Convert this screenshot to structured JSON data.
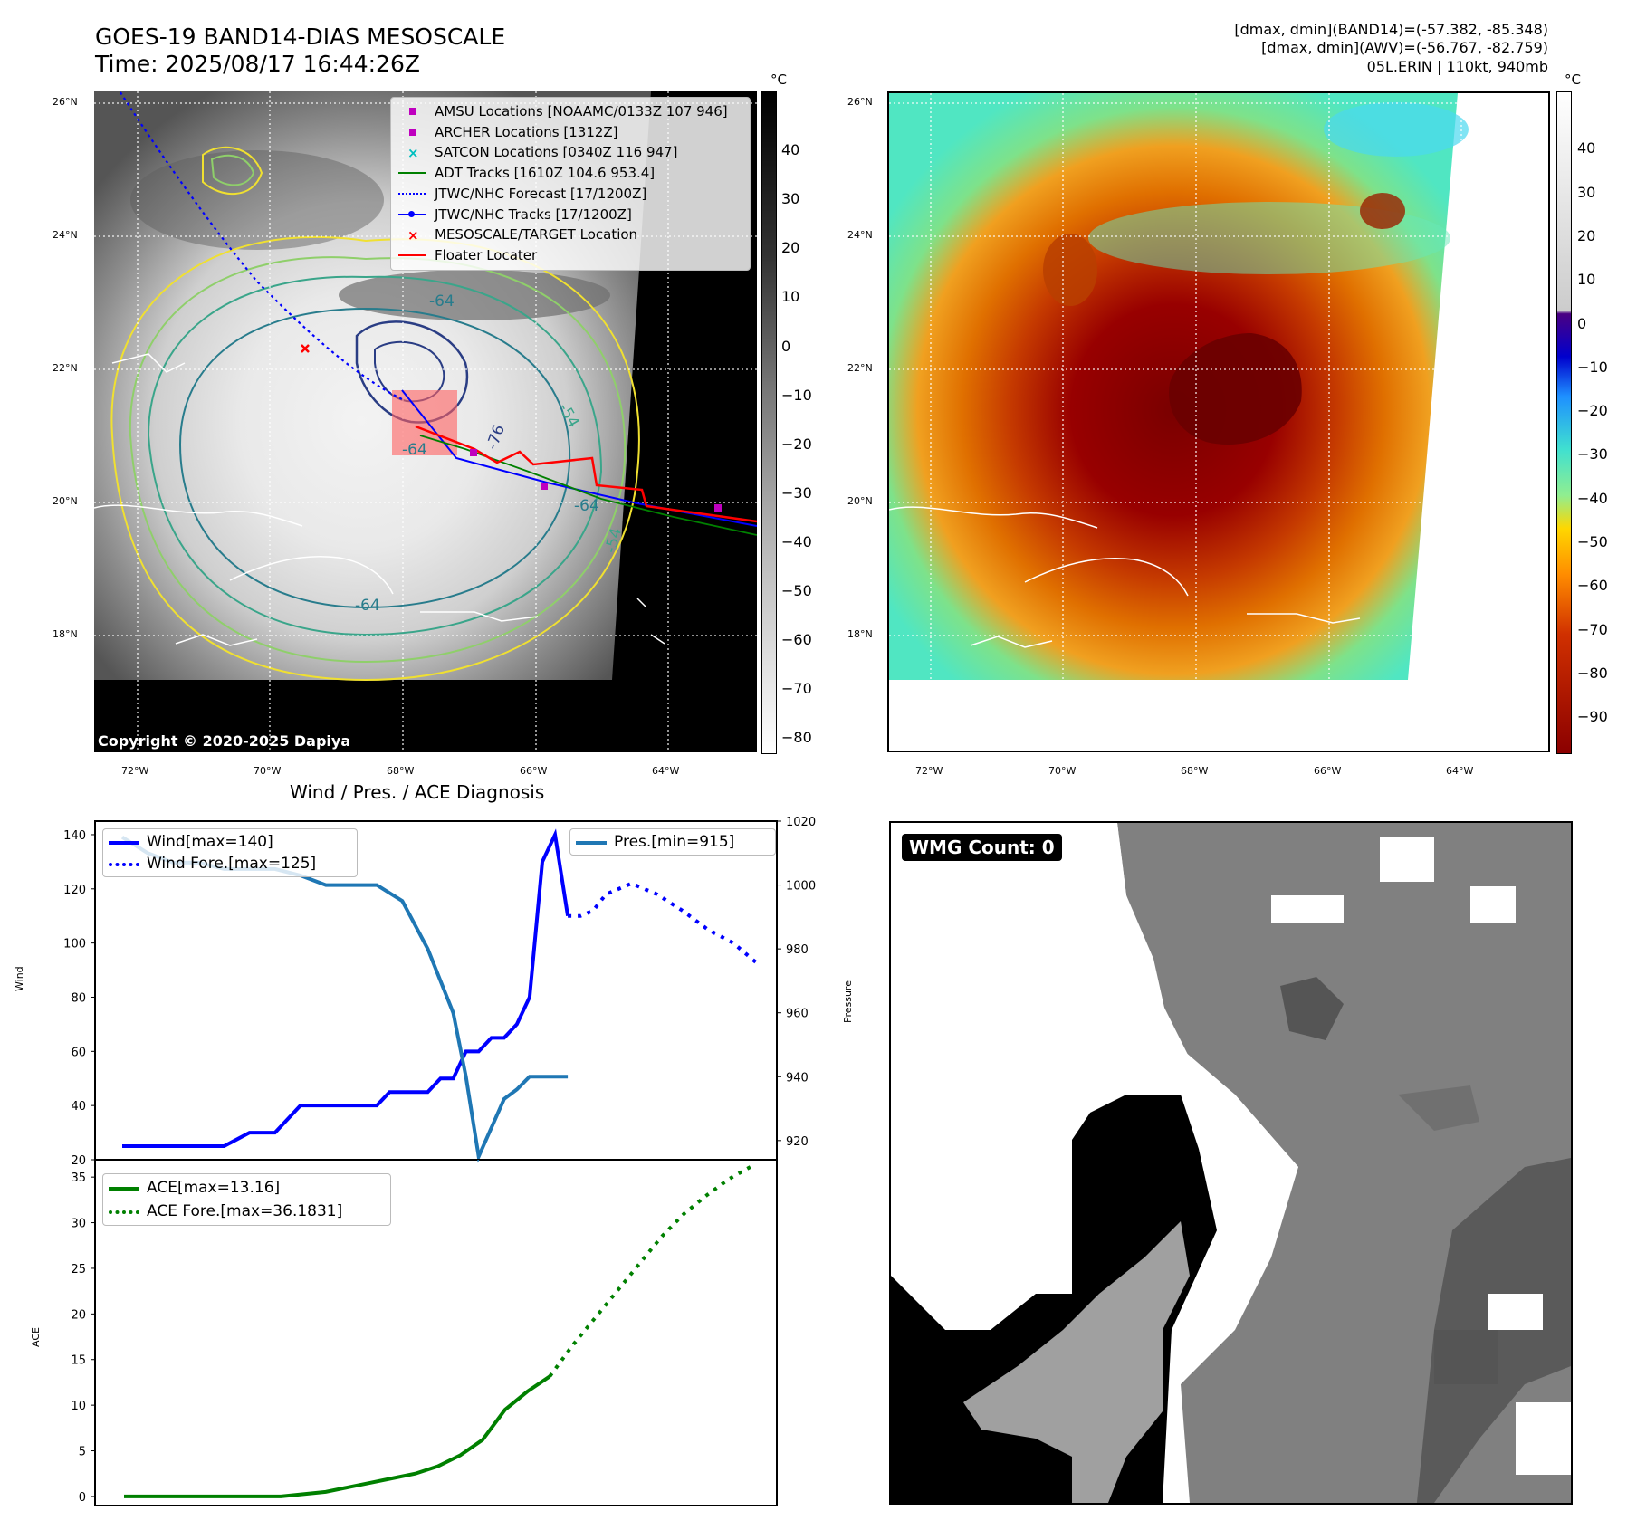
{
  "header": {
    "title_line1": "GOES-19 BAND14-DIAS MESOSCALE",
    "title_line2": "Time: 2025/08/17 16:44:26Z",
    "right_line1": "[dmax, dmin](BAND14)=(-57.382, -85.348)",
    "right_line2": "[dmax, dmin](AWV)=(-56.767, -82.759)",
    "right_line3": "05L.ERIN | 110kt, 940mb"
  },
  "maps": {
    "lat_labels": [
      "26°N",
      "24°N",
      "22°N",
      "20°N",
      "18°N"
    ],
    "lon_labels": [
      "72°W",
      "70°W",
      "68°W",
      "66°W",
      "64°W"
    ],
    "contour_labels": [
      "-64",
      "-76",
      "-64",
      "-54",
      "-64",
      "-54",
      "-64"
    ],
    "copyright": "Copyright © 2020-2025 Dapiya"
  },
  "legend": {
    "items": [
      {
        "label": "AMSU Locations [NOAAMC/0133Z 107 946]",
        "color": "#bf00bf",
        "style": "square"
      },
      {
        "label": "ARCHER Locations [1312Z]",
        "color": "#bf00bf",
        "style": "square"
      },
      {
        "label": "SATCON Locations [0340Z 116 947]",
        "color": "#00bfbf",
        "style": "x"
      },
      {
        "label": "ADT Tracks [1610Z 104.6 953.4]",
        "color": "#008000",
        "style": "line"
      },
      {
        "label": "JTWC/NHC Forecast [17/1200Z]",
        "color": "#0000ff",
        "style": "dotted"
      },
      {
        "label": "JTWC/NHC Tracks [17/1200Z]",
        "color": "#0000ff",
        "style": "line-dot"
      },
      {
        "label": "MESOSCALE/TARGET Location",
        "color": "#ff0000",
        "style": "x"
      },
      {
        "label": "Floater Locater",
        "color": "#ff0000",
        "style": "line"
      }
    ]
  },
  "colorbar_gray": {
    "unit": "°C",
    "ticks": [
      "40",
      "30",
      "20",
      "10",
      "0",
      "−10",
      "−20",
      "−30",
      "−40",
      "−50",
      "−60",
      "−70",
      "−80"
    ]
  },
  "colorbar_color": {
    "unit": "°C",
    "ticks": [
      "40",
      "30",
      "20",
      "10",
      "0",
      "−10",
      "−20",
      "−30",
      "−40",
      "−50",
      "−60",
      "−70",
      "−80",
      "−90"
    ]
  },
  "chart_data": [
    {
      "type": "line",
      "title": "Wind / Pres. / ACE Diagnosis",
      "ylabel": "Wind",
      "y2label": "Pressure",
      "ylim": [
        20,
        145
      ],
      "y2lim": [
        914,
        1020
      ],
      "yticks": [
        20,
        40,
        60,
        80,
        100,
        120,
        140
      ],
      "y2ticks": [
        920,
        940,
        960,
        980,
        1000,
        1020
      ],
      "grid": false,
      "legend_left": "top-left",
      "legend_right": "top-right",
      "series": [
        {
          "name": "Wind[max=140]",
          "color": "#0000ff",
          "style": "solid",
          "x": [
            0,
            2,
            4,
            6,
            8,
            10,
            12,
            14,
            16,
            18,
            19,
            20,
            21,
            22,
            23,
            24,
            25,
            26,
            27,
            28,
            29,
            30,
            31,
            32,
            33,
            34,
            35
          ],
          "values": [
            25,
            25,
            25,
            25,
            25,
            30,
            30,
            40,
            40,
            40,
            40,
            40,
            45,
            45,
            45,
            45,
            50,
            50,
            60,
            60,
            65,
            65,
            70,
            80,
            130,
            140,
            110
          ]
        },
        {
          "name": "Wind Fore.[max=125]",
          "color": "#0000ff",
          "style": "dotted",
          "x": [
            35,
            36,
            37,
            38,
            40,
            42,
            44,
            46,
            48,
            50
          ],
          "values": [
            110,
            110,
            112,
            118,
            122,
            118,
            112,
            105,
            100,
            92
          ]
        },
        {
          "name": "Pres.[min=915]",
          "color": "#1f77b4",
          "style": "solid",
          "axis": "right",
          "x": [
            0,
            2,
            4,
            6,
            8,
            10,
            12,
            14,
            16,
            18,
            20,
            22,
            24,
            26,
            27,
            28,
            30,
            31,
            32,
            33,
            34,
            35
          ],
          "values": [
            1015,
            1010,
            1007,
            1007,
            1005,
            1005,
            1005,
            1003,
            1000,
            1000,
            1000,
            995,
            980,
            960,
            940,
            915,
            933,
            936,
            940,
            940,
            940,
            940
          ]
        }
      ]
    },
    {
      "type": "line",
      "ylabel": "ACE",
      "ylim": [
        -1,
        37
      ],
      "yticks": [
        0,
        5,
        10,
        15,
        20,
        25,
        30,
        35
      ],
      "grid": false,
      "legend": "top-left",
      "series": [
        {
          "name": "ACE[max=13.16]",
          "color": "#008000",
          "style": "solid",
          "x": [
            0,
            10,
            14,
            18,
            20,
            22,
            24,
            26,
            28,
            30,
            32,
            34,
            36,
            38
          ],
          "values": [
            0,
            0,
            0,
            0.5,
            1,
            1.5,
            2,
            2.5,
            3.3,
            4.5,
            6.2,
            9.5,
            11.5,
            13.16
          ]
        },
        {
          "name": "ACE Fore.[max=36.1831]",
          "color": "#008000",
          "style": "dotted",
          "x": [
            38,
            40,
            42,
            44,
            46,
            48,
            50,
            52,
            54,
            56
          ],
          "values": [
            13.16,
            16.5,
            19.5,
            22.5,
            25.5,
            28.5,
            31,
            33,
            34.8,
            36.18
          ]
        }
      ]
    }
  ],
  "wmg": {
    "label": "WMG Count: 0"
  },
  "colors": {
    "wind": "#0000ff",
    "pressure": "#1f77b4",
    "ace": "#008000",
    "floater": "#ff0000"
  }
}
